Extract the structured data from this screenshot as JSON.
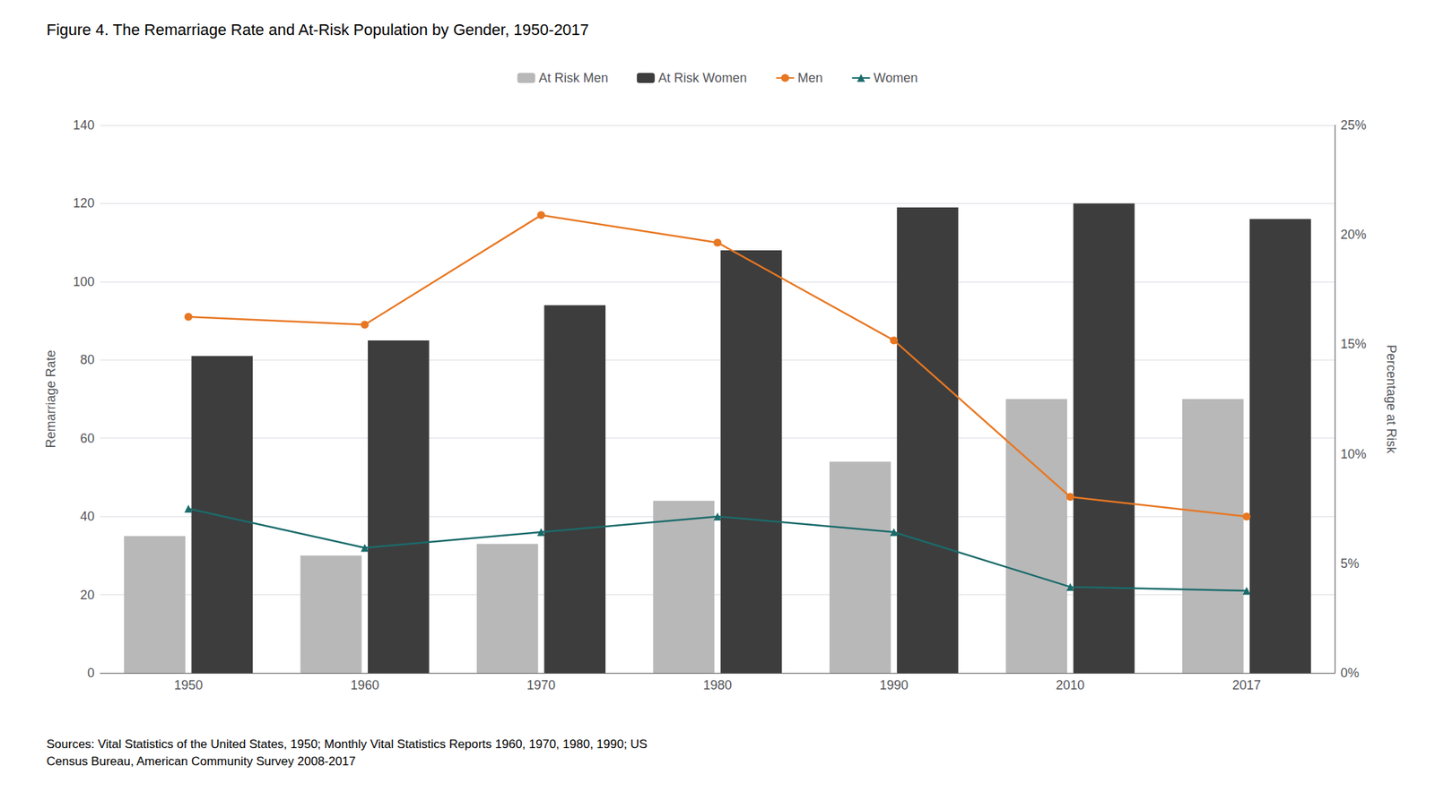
{
  "chart_data": {
    "type": "bar",
    "title": "Figure 4. The Remarriage Rate and At-Risk Population by Gender, 1950-2017",
    "categories": [
      "1950",
      "1960",
      "1970",
      "1980",
      "1990",
      "2010",
      "2017"
    ],
    "series": [
      {
        "name": "At Risk Men",
        "type": "bar",
        "color": "#b8b8b8",
        "values": [
          35,
          30,
          33,
          44,
          54,
          70,
          70
        ]
      },
      {
        "name": "At Risk Women",
        "type": "bar",
        "color": "#3d3d3d",
        "values": [
          81,
          85,
          94,
          108,
          119,
          120,
          116
        ]
      },
      {
        "name": "Men",
        "type": "line",
        "color": "#E87722",
        "marker": "circle",
        "values": [
          91,
          89,
          117,
          110,
          85,
          45,
          40
        ]
      },
      {
        "name": "Women",
        "type": "line",
        "color": "#1B6B6B",
        "marker": "triangle",
        "values": [
          42,
          32,
          36,
          40,
          36,
          22,
          21
        ]
      }
    ],
    "ylabel": "Remarriage Rate",
    "ylim": [
      0,
      140
    ],
    "yticks": [
      0,
      20,
      40,
      60,
      80,
      100,
      120,
      140
    ],
    "y2label": "Percentage at Risk",
    "y2lim": [
      0,
      0.25
    ],
    "y2ticks": [
      {
        "value": 0.0,
        "label": "0%"
      },
      {
        "value": 0.05,
        "label": "5%"
      },
      {
        "value": 0.1,
        "label": "10%"
      },
      {
        "value": 0.15,
        "label": "15%"
      },
      {
        "value": 0.2,
        "label": "20%"
      },
      {
        "value": 0.25,
        "label": "25%"
      }
    ],
    "grid": true,
    "legend": "top",
    "footnote": "Sources: Vital Statistics of the United States, 1950; Monthly Vital Statistics Reports 1960, 1970, 1980, 1990; US\nCensus Bureau, American Community Survey 2008-2017"
  }
}
